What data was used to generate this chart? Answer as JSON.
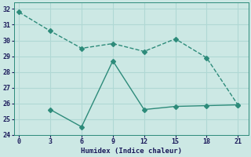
{
  "xlabel": "Humidex (Indice chaleur)",
  "line1_x": [
    0,
    3,
    6,
    9,
    12,
    15,
    18,
    21
  ],
  "line1_y": [
    31.8,
    30.6,
    29.5,
    29.8,
    29.3,
    30.1,
    28.9,
    25.9
  ],
  "line2_x": [
    3,
    6,
    9,
    12,
    15,
    18,
    21
  ],
  "line2_y": [
    25.6,
    24.5,
    28.7,
    25.6,
    25.8,
    25.85,
    25.9
  ],
  "line_color": "#2d8b7a",
  "bg_color": "#cce8e4",
  "grid_color": "#b0d8d4",
  "xlim": [
    -0.5,
    22
  ],
  "ylim": [
    24,
    32.4
  ],
  "xticks": [
    0,
    3,
    6,
    9,
    12,
    15,
    18,
    21
  ],
  "yticks": [
    24,
    25,
    26,
    27,
    28,
    29,
    30,
    31,
    32
  ],
  "markersize": 3,
  "linewidth": 1.0
}
